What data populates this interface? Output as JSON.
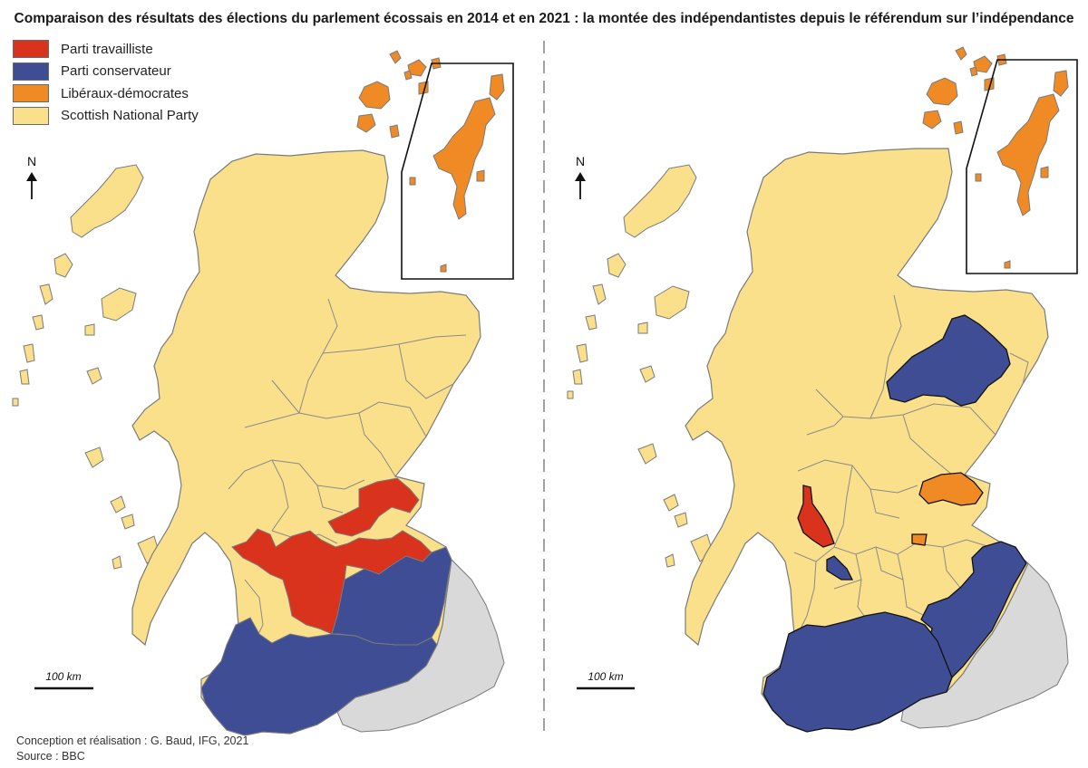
{
  "title": "Comparaison des résultats des élections du parlement écossais en 2014 et en 2021 : la montée des indépendantistes depuis le référendum sur l’indépendance",
  "legend": [
    {
      "label": "Parti travailliste",
      "color": "#d9331e"
    },
    {
      "label": "Parti conservateur",
      "color": "#3f4d94"
    },
    {
      "label": "Libéraux-démocrates",
      "color": "#f08a24"
    },
    {
      "label": "Scottish National Party",
      "color": "#fbe08c"
    }
  ],
  "colors": {
    "snp": "#fbe08c",
    "labour": "#d9331e",
    "conservative": "#3f4d94",
    "libdem": "#f08a24",
    "england": "#d9d9d9",
    "border": "#7a7a7a"
  },
  "maps": [
    {
      "year": "2014",
      "north_label": "N",
      "scale_label": "100 km"
    },
    {
      "year": "2021",
      "north_label": "N",
      "scale_label": "100 km"
    }
  ],
  "credits": {
    "line1": "Conception et réalisation : G. Baud, IFG, 2021",
    "line2": "Source : BBC"
  }
}
